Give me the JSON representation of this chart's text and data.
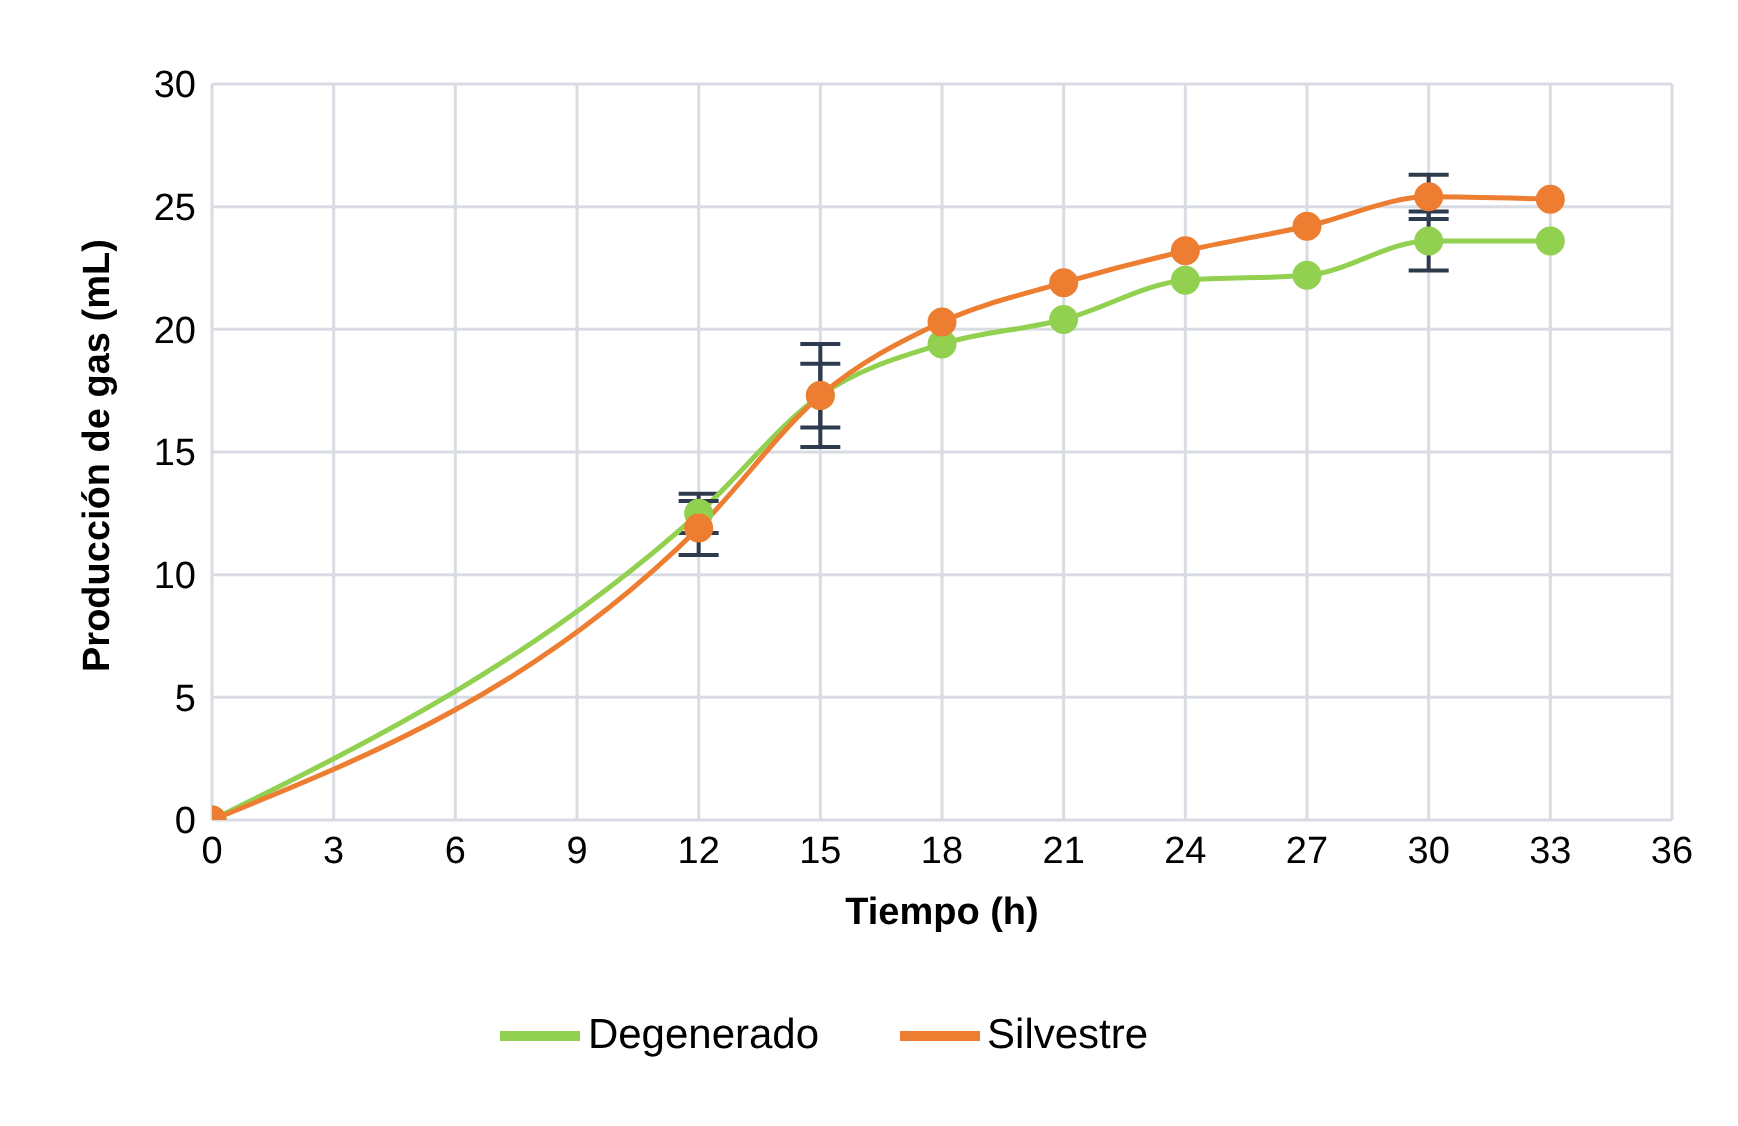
{
  "chart_data": {
    "type": "line",
    "xlabel": "Tiempo (h)",
    "ylabel": "Producción de gas (mL)",
    "x": [
      0,
      12,
      15,
      18,
      21,
      24,
      27,
      30,
      33
    ],
    "series": [
      {
        "name": "Degenerado",
        "color": "#92d050",
        "values": [
          0,
          12.5,
          17.3,
          19.4,
          20.4,
          22.0,
          22.2,
          23.6,
          23.6
        ],
        "errors": [
          null,
          0.8,
          1.3,
          null,
          null,
          null,
          null,
          1.2,
          null
        ]
      },
      {
        "name": "Silvestre",
        "color": "#ed7d31",
        "values": [
          0,
          11.9,
          17.3,
          20.3,
          21.9,
          23.2,
          24.2,
          25.4,
          25.3
        ],
        "errors": [
          null,
          1.1,
          2.1,
          null,
          null,
          null,
          null,
          0.9,
          null
        ]
      }
    ],
    "xlim": [
      0,
      36
    ],
    "xticks": [
      0,
      3,
      6,
      9,
      12,
      15,
      18,
      21,
      24,
      27,
      30,
      33,
      36
    ],
    "ylim": [
      0,
      30
    ],
    "yticks": [
      0,
      5,
      10,
      15,
      20,
      25,
      30
    ],
    "grid": true,
    "legend": "bottom",
    "marker": "circle",
    "line_style": "solid"
  }
}
